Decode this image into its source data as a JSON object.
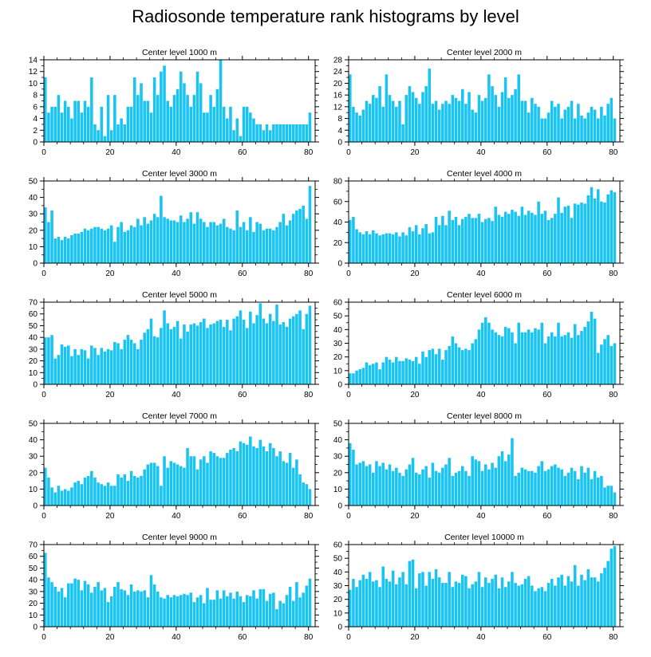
{
  "title": "Radiosonde temperature rank histograms by level",
  "colors": {
    "bar": "#19c3f2",
    "axis": "#000000"
  },
  "chart_data": [
    {
      "type": "bar",
      "title": "Center level 1000 m",
      "xlim": [
        0,
        82
      ],
      "ylim": [
        0,
        14
      ],
      "xticks": [
        0,
        20,
        40,
        60,
        80
      ],
      "yticks": [
        0,
        2,
        4,
        6,
        8,
        10,
        12,
        14
      ],
      "values": [
        11,
        5,
        6,
        6,
        8,
        5,
        7,
        6,
        4,
        7,
        7,
        5,
        7,
        6,
        11,
        3,
        2,
        6,
        1,
        8,
        2,
        8,
        3,
        4,
        3,
        6,
        6,
        11,
        8,
        10,
        7,
        7,
        5,
        11,
        8,
        12,
        13,
        7,
        6,
        8,
        9,
        12,
        10,
        8,
        6,
        8,
        12,
        10,
        5,
        5,
        8,
        6,
        9,
        14,
        6,
        4,
        6,
        2,
        4,
        1,
        6,
        6,
        5,
        4,
        3,
        3,
        2,
        3,
        2,
        3,
        3,
        3,
        3,
        3,
        3,
        3,
        3,
        3,
        3,
        3,
        5
      ],
      "xlabel": "",
      "ylabel": ""
    },
    {
      "type": "bar",
      "title": "Center level 2000 m",
      "xlim": [
        0,
        82
      ],
      "ylim": [
        0,
        28
      ],
      "xticks": [
        0,
        20,
        40,
        60,
        80
      ],
      "yticks": [
        0,
        4,
        8,
        12,
        16,
        20,
        24,
        28
      ],
      "values": [
        23,
        12,
        10,
        9,
        11,
        14,
        13,
        16,
        15,
        19,
        12,
        23,
        16,
        14,
        12,
        14,
        6,
        16,
        19,
        17,
        15,
        13,
        17,
        19,
        25,
        13,
        14,
        11,
        13,
        14,
        13,
        16,
        15,
        14,
        18,
        13,
        17,
        11,
        10,
        16,
        14,
        15,
        23,
        19,
        16,
        12,
        17,
        22,
        15,
        16,
        18,
        23,
        14,
        14,
        10,
        15,
        13,
        12,
        8,
        8,
        10,
        14,
        12,
        13,
        8,
        11,
        12,
        14,
        8,
        13,
        9,
        8,
        10,
        12,
        11,
        8,
        12,
        9,
        13,
        15,
        8
      ],
      "xlabel": "",
      "ylabel": ""
    },
    {
      "type": "bar",
      "title": "Center level 3000 m",
      "xlim": [
        0,
        82
      ],
      "ylim": [
        0,
        50
      ],
      "xticks": [
        0,
        20,
        40,
        60,
        80
      ],
      "yticks": [
        0,
        10,
        20,
        30,
        40,
        50
      ],
      "values": [
        34,
        25,
        32,
        15,
        16,
        14,
        16,
        15,
        17,
        18,
        18,
        19,
        21,
        20,
        21,
        22,
        22,
        21,
        20,
        21,
        23,
        13,
        22,
        25,
        19,
        20,
        23,
        22,
        27,
        23,
        28,
        24,
        26,
        30,
        28,
        41,
        28,
        27,
        26,
        26,
        25,
        29,
        25,
        27,
        31,
        24,
        31,
        27,
        25,
        22,
        25,
        25,
        23,
        24,
        27,
        22,
        21,
        20,
        32,
        22,
        25,
        20,
        28,
        19,
        25,
        24,
        20,
        21,
        21,
        20,
        22,
        25,
        30,
        23,
        26,
        30,
        32,
        33,
        35,
        27,
        47
      ],
      "xlabel": "",
      "ylabel": ""
    },
    {
      "type": "bar",
      "title": "Center level 4000 m",
      "xlim": [
        0,
        82
      ],
      "ylim": [
        0,
        80
      ],
      "xticks": [
        0,
        20,
        40,
        60,
        80
      ],
      "yticks": [
        0,
        20,
        40,
        60,
        80
      ],
      "values": [
        42,
        45,
        33,
        30,
        28,
        31,
        28,
        32,
        29,
        27,
        28,
        29,
        29,
        28,
        30,
        26,
        30,
        27,
        35,
        31,
        37,
        28,
        34,
        38,
        29,
        30,
        45,
        37,
        46,
        37,
        51,
        42,
        45,
        37,
        43,
        45,
        48,
        44,
        44,
        48,
        40,
        43,
        44,
        41,
        55,
        47,
        45,
        50,
        48,
        52,
        50,
        46,
        55,
        47,
        51,
        49,
        47,
        60,
        48,
        51,
        42,
        44,
        48,
        64,
        49,
        55,
        56,
        44,
        58,
        57,
        59,
        58,
        66,
        74,
        63,
        72,
        60,
        59,
        67,
        71,
        69
      ],
      "xlabel": "",
      "ylabel": ""
    },
    {
      "type": "bar",
      "title": "Center level 5000 m",
      "xlim": [
        0,
        82
      ],
      "ylim": [
        0,
        70
      ],
      "xticks": [
        0,
        20,
        40,
        60,
        80
      ],
      "yticks": [
        0,
        10,
        20,
        30,
        40,
        50,
        60,
        70
      ],
      "values": [
        40,
        40,
        42,
        22,
        25,
        34,
        32,
        33,
        24,
        30,
        25,
        30,
        29,
        22,
        33,
        31,
        25,
        31,
        28,
        30,
        29,
        36,
        35,
        30,
        38,
        42,
        38,
        35,
        30,
        38,
        44,
        47,
        56,
        41,
        40,
        48,
        63,
        52,
        47,
        49,
        54,
        39,
        51,
        45,
        51,
        52,
        50,
        53,
        56,
        48,
        51,
        52,
        54,
        55,
        49,
        55,
        46,
        56,
        58,
        63,
        55,
        48,
        62,
        52,
        59,
        69,
        56,
        52,
        60,
        54,
        68,
        51,
        53,
        49,
        56,
        58,
        60,
        63,
        47,
        60,
        67
      ],
      "xlabel": "",
      "ylabel": ""
    },
    {
      "type": "bar",
      "title": "Center level 6000 m",
      "xlim": [
        0,
        82
      ],
      "ylim": [
        0,
        60
      ],
      "xticks": [
        0,
        20,
        40,
        60,
        80
      ],
      "yticks": [
        0,
        10,
        20,
        30,
        40,
        50,
        60
      ],
      "values": [
        8,
        8,
        10,
        11,
        12,
        16,
        14,
        15,
        16,
        11,
        16,
        20,
        18,
        16,
        20,
        17,
        17,
        19,
        18,
        17,
        20,
        15,
        24,
        20,
        25,
        26,
        22,
        26,
        18,
        25,
        28,
        35,
        30,
        27,
        25,
        26,
        25,
        30,
        33,
        40,
        45,
        49,
        45,
        40,
        38,
        36,
        35,
        42,
        41,
        38,
        30,
        45,
        38,
        38,
        40,
        38,
        41,
        40,
        45,
        30,
        35,
        38,
        35,
        45,
        35,
        36,
        38,
        34,
        44,
        36,
        39,
        42,
        46,
        53,
        48,
        23,
        29,
        33,
        36,
        28,
        30
      ],
      "xlabel": "",
      "ylabel": ""
    },
    {
      "type": "bar",
      "title": "Center level 7000 m",
      "xlim": [
        0,
        82
      ],
      "ylim": [
        0,
        50
      ],
      "xticks": [
        0,
        20,
        40,
        60,
        80
      ],
      "yticks": [
        0,
        10,
        20,
        30,
        40,
        50
      ],
      "values": [
        23,
        17,
        11,
        8,
        12,
        9,
        10,
        9,
        11,
        14,
        15,
        13,
        17,
        18,
        21,
        17,
        14,
        13,
        12,
        14,
        12,
        12,
        19,
        17,
        19,
        15,
        21,
        18,
        17,
        18,
        22,
        25,
        26,
        26,
        24,
        12,
        30,
        23,
        27,
        26,
        25,
        24,
        23,
        35,
        30,
        30,
        22,
        28,
        30,
        26,
        33,
        32,
        30,
        29,
        29,
        32,
        34,
        35,
        33,
        39,
        38,
        37,
        42,
        36,
        35,
        40,
        36,
        33,
        38,
        35,
        30,
        33,
        27,
        26,
        32,
        23,
        28,
        19,
        14,
        13,
        10
      ],
      "xlabel": "",
      "ylabel": ""
    },
    {
      "type": "bar",
      "title": "Center level 8000 m",
      "xlim": [
        0,
        82
      ],
      "ylim": [
        0,
        50
      ],
      "xticks": [
        0,
        20,
        40,
        60,
        80
      ],
      "yticks": [
        0,
        10,
        20,
        30,
        40,
        50
      ],
      "values": [
        38,
        34,
        25,
        26,
        27,
        24,
        25,
        20,
        27,
        24,
        26,
        22,
        25,
        21,
        23,
        20,
        18,
        22,
        25,
        29,
        20,
        19,
        22,
        24,
        17,
        26,
        21,
        20,
        23,
        25,
        29,
        18,
        20,
        21,
        24,
        21,
        18,
        30,
        28,
        27,
        21,
        25,
        22,
        26,
        23,
        30,
        33,
        27,
        31,
        41,
        18,
        20,
        23,
        22,
        21,
        21,
        20,
        24,
        27,
        21,
        22,
        24,
        25,
        23,
        22,
        18,
        20,
        23,
        21,
        16,
        24,
        20,
        23,
        16,
        21,
        17,
        18,
        11,
        12,
        12,
        8
      ],
      "xlabel": "",
      "ylabel": ""
    },
    {
      "type": "bar",
      "title": "Center level 9000 m",
      "xlim": [
        0,
        82
      ],
      "ylim": [
        0,
        70
      ],
      "xticks": [
        0,
        20,
        40,
        60,
        80
      ],
      "yticks": [
        0,
        10,
        20,
        30,
        40,
        50,
        60,
        70
      ],
      "values": [
        63,
        42,
        38,
        34,
        30,
        33,
        25,
        37,
        37,
        41,
        40,
        31,
        39,
        36,
        29,
        34,
        38,
        31,
        33,
        21,
        26,
        34,
        38,
        32,
        31,
        27,
        36,
        30,
        31,
        30,
        31,
        25,
        44,
        36,
        30,
        25,
        24,
        27,
        25,
        27,
        26,
        27,
        28,
        27,
        29,
        21,
        25,
        27,
        20,
        33,
        23,
        23,
        31,
        24,
        31,
        26,
        29,
        24,
        30,
        26,
        21,
        27,
        26,
        31,
        24,
        32,
        32,
        22,
        28,
        29,
        15,
        22,
        20,
        27,
        34,
        22,
        38,
        25,
        29,
        35,
        41
      ],
      "xlabel": "",
      "ylabel": ""
    },
    {
      "type": "bar",
      "title": "Center level 10000 m",
      "xlim": [
        0,
        82
      ],
      "ylim": [
        0,
        60
      ],
      "xticks": [
        0,
        20,
        40,
        60,
        80
      ],
      "yticks": [
        0,
        10,
        20,
        30,
        40,
        50,
        60
      ],
      "values": [
        27,
        35,
        29,
        34,
        38,
        35,
        40,
        33,
        34,
        29,
        44,
        35,
        33,
        41,
        31,
        36,
        40,
        31,
        48,
        49,
        28,
        39,
        40,
        30,
        40,
        35,
        42,
        36,
        32,
        32,
        40,
        29,
        33,
        32,
        38,
        37,
        28,
        31,
        33,
        40,
        29,
        36,
        32,
        35,
        38,
        28,
        36,
        29,
        33,
        40,
        32,
        30,
        31,
        35,
        37,
        30,
        26,
        28,
        29,
        26,
        32,
        35,
        30,
        36,
        38,
        30,
        37,
        33,
        45,
        30,
        38,
        34,
        42,
        36,
        36,
        33,
        39,
        43,
        48,
        57,
        59
      ],
      "xlabel": "",
      "ylabel": ""
    }
  ]
}
